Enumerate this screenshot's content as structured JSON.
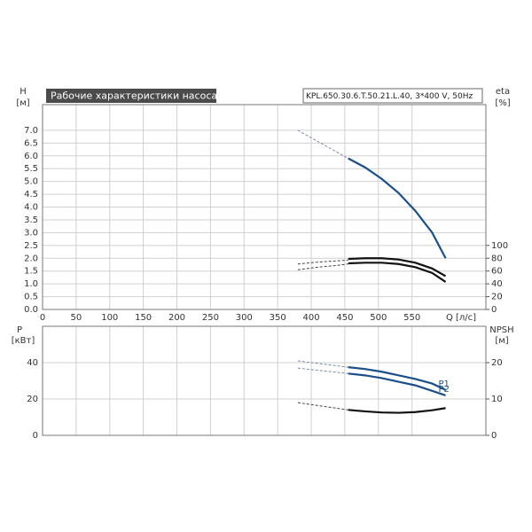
{
  "chart_data": [
    {
      "type": "line",
      "title": "Рабочие характеристики насоса",
      "subtitle": "KPL.650.30.6.T.50.21.L.40, 3*400 V, 50Hz",
      "y_label": "H",
      "y_unit": "[м]",
      "y2_label": "eta",
      "y2_unit": "[%]",
      "x_label": "Q [л/с]",
      "xlim": [
        0,
        660
      ],
      "xticks": [
        0,
        50,
        100,
        150,
        200,
        250,
        300,
        350,
        400,
        450,
        500,
        550
      ],
      "ylim": [
        0,
        8
      ],
      "yticks": [
        {
          "value": 0,
          "label": "0.0"
        },
        {
          "value": 0.5,
          "label": "0.5"
        },
        {
          "value": 1,
          "label": "1.0"
        },
        {
          "value": 1.5,
          "label": "1.5"
        },
        {
          "value": 2,
          "label": "2.0"
        },
        {
          "value": 2.5,
          "label": "2.5"
        },
        {
          "value": 3,
          "label": "3.0"
        },
        {
          "value": 3.5,
          "label": "3.5"
        },
        {
          "value": 4,
          "label": "4.0"
        },
        {
          "value": 4.5,
          "label": "4.5"
        },
        {
          "value": 5,
          "label": "5.0"
        },
        {
          "value": 5.5,
          "label": "5.5"
        },
        {
          "value": 6,
          "label": "6.0"
        },
        {
          "value": 6.5,
          "label": "6.5"
        },
        {
          "value": 7,
          "label": "7.0"
        }
      ],
      "y2lim": [
        0,
        320
      ],
      "y2ticks": [
        0,
        20,
        40,
        60,
        80,
        100
      ],
      "grid": true,
      "series": [
        {
          "style": "dashed",
          "color": "#7a8aa6",
          "x": [
            380,
            455
          ],
          "values": [
            7.0,
            5.9
          ]
        },
        {
          "style": "solid",
          "color": "#1b4f8a",
          "x": [
            455,
            480,
            505,
            530,
            555,
            580,
            600
          ],
          "values": [
            5.9,
            5.55,
            5.1,
            4.55,
            3.85,
            3.0,
            2.0
          ]
        },
        {
          "style": "dashed",
          "color": "#444444",
          "axis": "y2",
          "x": [
            380,
            410,
            440,
            455
          ],
          "values": [
            71,
            74,
            76,
            77
          ]
        },
        {
          "style": "solid",
          "color": "#111111",
          "axis": "y2",
          "x": [
            455,
            480,
            505,
            530,
            555,
            580,
            600
          ],
          "values": [
            79,
            80,
            80,
            78,
            73,
            64,
            52
          ]
        },
        {
          "style": "dashed",
          "color": "#444444",
          "axis": "y2",
          "x": [
            380,
            410,
            440,
            455
          ],
          "values": [
            62,
            66,
            69,
            71
          ]
        },
        {
          "style": "solid",
          "color": "#111111",
          "axis": "y2",
          "x": [
            455,
            480,
            505,
            530,
            555,
            580,
            600
          ],
          "values": [
            72,
            73,
            73,
            71,
            66,
            57,
            43
          ]
        }
      ]
    },
    {
      "type": "line",
      "y_label": "P",
      "y_unit": "[кВт]",
      "y2_label": "NPSH",
      "y2_unit": "[м]",
      "xlim": [
        0,
        660
      ],
      "xticks": [
        0,
        50,
        100,
        150,
        200,
        250,
        300,
        350,
        400,
        450,
        500,
        550
      ],
      "ylim": [
        0,
        60
      ],
      "yticks": [
        0,
        20,
        40
      ],
      "y2lim": [
        0,
        30
      ],
      "y2ticks": [
        0,
        10,
        20
      ],
      "grid": true,
      "series": [
        {
          "style": "dashed",
          "color": "#7a8aa6",
          "x": [
            380,
            455
          ],
          "values": [
            41,
            37.5
          ]
        },
        {
          "name": "P1",
          "style": "solid",
          "color": "#1b4f8a",
          "x": [
            455,
            480,
            505,
            530,
            555,
            580,
            600
          ],
          "values": [
            37.5,
            36.5,
            35,
            33,
            31,
            28.5,
            25
          ]
        },
        {
          "style": "dashed",
          "color": "#7a8aa6",
          "x": [
            380,
            455
          ],
          "values": [
            37,
            34
          ]
        },
        {
          "name": "P2",
          "style": "solid",
          "color": "#1b4f8a",
          "x": [
            455,
            480,
            505,
            530,
            555,
            580,
            600
          ],
          "values": [
            34,
            33,
            31.5,
            29.5,
            27.5,
            24.5,
            22
          ]
        },
        {
          "style": "dashed",
          "color": "#444444",
          "axis": "y2",
          "x": [
            380,
            455
          ],
          "values": [
            9,
            7
          ]
        },
        {
          "style": "solid",
          "color": "#111111",
          "axis": "y2",
          "x": [
            455,
            480,
            505,
            530,
            555,
            580,
            600
          ],
          "values": [
            7,
            6.6,
            6.3,
            6.2,
            6.4,
            6.9,
            7.5
          ]
        }
      ]
    }
  ]
}
